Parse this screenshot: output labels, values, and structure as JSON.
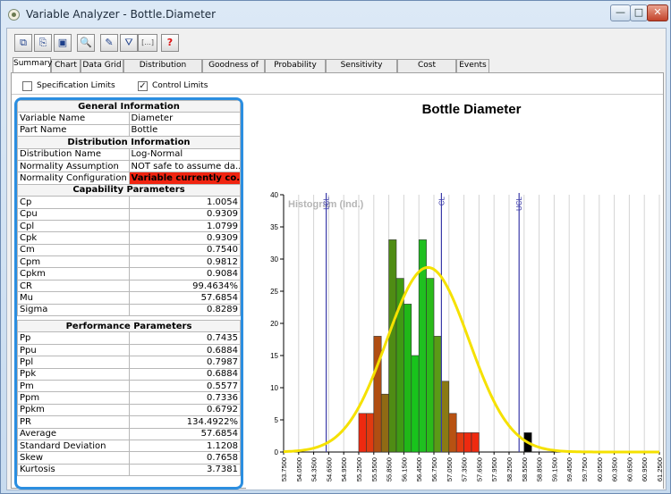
{
  "window": {
    "title": "Variable Analyzer - Bottle.Diameter",
    "minimize": "—",
    "maximize": "□",
    "close": "✕"
  },
  "toolbar": [
    {
      "name": "copy-table-button",
      "glyph": "⧉"
    },
    {
      "name": "copy-chart-button",
      "glyph": "⎘"
    },
    {
      "name": "save-image-button",
      "glyph": "▣"
    },
    {
      "name": "zoom-button",
      "glyph": "🔍"
    },
    {
      "name": "edit-button",
      "glyph": "✎"
    },
    {
      "name": "filter-button",
      "glyph": "⛛"
    },
    {
      "name": "ellipsis-button",
      "glyph": "[...]"
    },
    {
      "name": "help-button",
      "glyph": "?"
    }
  ],
  "tabs": [
    "Summary",
    "Chart",
    "Data Grid",
    "Distribution Analysis",
    "Goodness of Fit",
    "Probability Plot",
    "Sensitivity Analysis",
    "Cost Inspector",
    "Events"
  ],
  "options": {
    "spec_limits": {
      "label": "Specification Limits",
      "checked": ""
    },
    "control_limits": {
      "label": "Control Limits",
      "checked": "✓"
    }
  },
  "summary": {
    "general_header": "General Information",
    "variable_name_label": "Variable Name",
    "variable_name": "Diameter",
    "part_name_label": "Part Name",
    "part_name": "Bottle",
    "dist_header": "Distribution Information",
    "dist_name_label": "Distribution Name",
    "dist_name": "Log-Normal",
    "norm_assump_label": "Normality Assumption",
    "norm_assump": "NOT safe to assume da...",
    "norm_config_label": "Normality Configuration",
    "norm_config": "Variable currently co...",
    "capability_header": "Capability Parameters",
    "capability": [
      {
        "k": "Cp",
        "v": "1.0054"
      },
      {
        "k": "Cpu",
        "v": "0.9309"
      },
      {
        "k": "Cpl",
        "v": "1.0799"
      },
      {
        "k": "Cpk",
        "v": "0.9309"
      },
      {
        "k": "Cm",
        "v": "0.7540"
      },
      {
        "k": "Cpm",
        "v": "0.9812"
      },
      {
        "k": "Cpkm",
        "v": "0.9084"
      },
      {
        "k": "CR",
        "v": "99.4634%"
      },
      {
        "k": "Mu",
        "v": "57.6854"
      },
      {
        "k": "Sigma",
        "v": "0.8289"
      }
    ],
    "performance_header": "Performance Parameters",
    "performance": [
      {
        "k": "Pp",
        "v": "0.7435"
      },
      {
        "k": "Ppu",
        "v": "0.6884"
      },
      {
        "k": "Ppl",
        "v": "0.7987"
      },
      {
        "k": "Ppk",
        "v": "0.6884"
      },
      {
        "k": "Pm",
        "v": "0.5577"
      },
      {
        "k": "Ppm",
        "v": "0.7336"
      },
      {
        "k": "Ppkm",
        "v": "0.6792"
      },
      {
        "k": "PR",
        "v": "134.4922%"
      },
      {
        "k": "Average",
        "v": "57.6854"
      },
      {
        "k": "Standard Deviation",
        "v": "1.1208"
      },
      {
        "k": "Skew",
        "v": "0.7658"
      },
      {
        "k": "Kurtosis",
        "v": "3.7381"
      }
    ]
  },
  "colors": {
    "highlight": "#2b8ee0",
    "alert": "#f02410",
    "curve": "#f5e100",
    "limit_line": "#3a3aa8"
  },
  "chart_data": {
    "type": "bar",
    "title": "Bottle Diameter",
    "watermark": "Histogram (Ind.)",
    "xlabel": "",
    "ylabel": "",
    "ylim": [
      0,
      40
    ],
    "yticks": [
      0,
      5,
      10,
      15,
      20,
      25,
      30,
      35,
      40
    ],
    "bin_width": 0.15,
    "x_start": 53.75,
    "x_end": 61.25,
    "x_ticks": [
      "53.7500",
      "54.0500",
      "54.3500",
      "54.6500",
      "54.9500",
      "55.2500",
      "55.5500",
      "55.8500",
      "56.1500",
      "56.4500",
      "56.7500",
      "57.0500",
      "57.3500",
      "57.6500",
      "57.9500",
      "58.2500",
      "58.5500",
      "58.8500",
      "59.1500",
      "59.4500",
      "59.7500",
      "60.0500",
      "60.3500",
      "60.6500",
      "60.9500",
      "61.2500"
    ],
    "bars": [
      {
        "start": 55.25,
        "value": 6,
        "color": "#ee2a10"
      },
      {
        "start": 55.4,
        "value": 6,
        "color": "#e03a10"
      },
      {
        "start": 55.55,
        "value": 18,
        "color": "#b04e12"
      },
      {
        "start": 55.7,
        "value": 9,
        "color": "#8f6a14"
      },
      {
        "start": 55.85,
        "value": 33,
        "color": "#4f8c14"
      },
      {
        "start": 56.0,
        "value": 27,
        "color": "#3f9a14"
      },
      {
        "start": 56.15,
        "value": 23,
        "color": "#20b818"
      },
      {
        "start": 56.3,
        "value": 15,
        "color": "#18c41c"
      },
      {
        "start": 56.45,
        "value": 33,
        "color": "#1fc020"
      },
      {
        "start": 56.6,
        "value": 27,
        "color": "#2aba1a"
      },
      {
        "start": 56.75,
        "value": 18,
        "color": "#5a9a16"
      },
      {
        "start": 56.9,
        "value": 11,
        "color": "#8a7a14"
      },
      {
        "start": 57.05,
        "value": 6,
        "color": "#b85212"
      },
      {
        "start": 57.2,
        "value": 3,
        "color": "#e03a10"
      },
      {
        "start": 57.35,
        "value": 3,
        "color": "#ee2a10"
      },
      {
        "start": 57.5,
        "value": 3,
        "color": "#ee2a10"
      },
      {
        "start": 58.55,
        "value": 3,
        "color": "#000000"
      }
    ],
    "limit_lines": [
      {
        "label": "LCL",
        "x": 54.6
      },
      {
        "label": "CL",
        "x": 56.9
      },
      {
        "label": "UCL",
        "x": 58.45
      }
    ],
    "curve": {
      "mu": 56.63,
      "sigma": 0.82,
      "peak": 28.7
    },
    "grid": "vertical",
    "legend": "none"
  }
}
